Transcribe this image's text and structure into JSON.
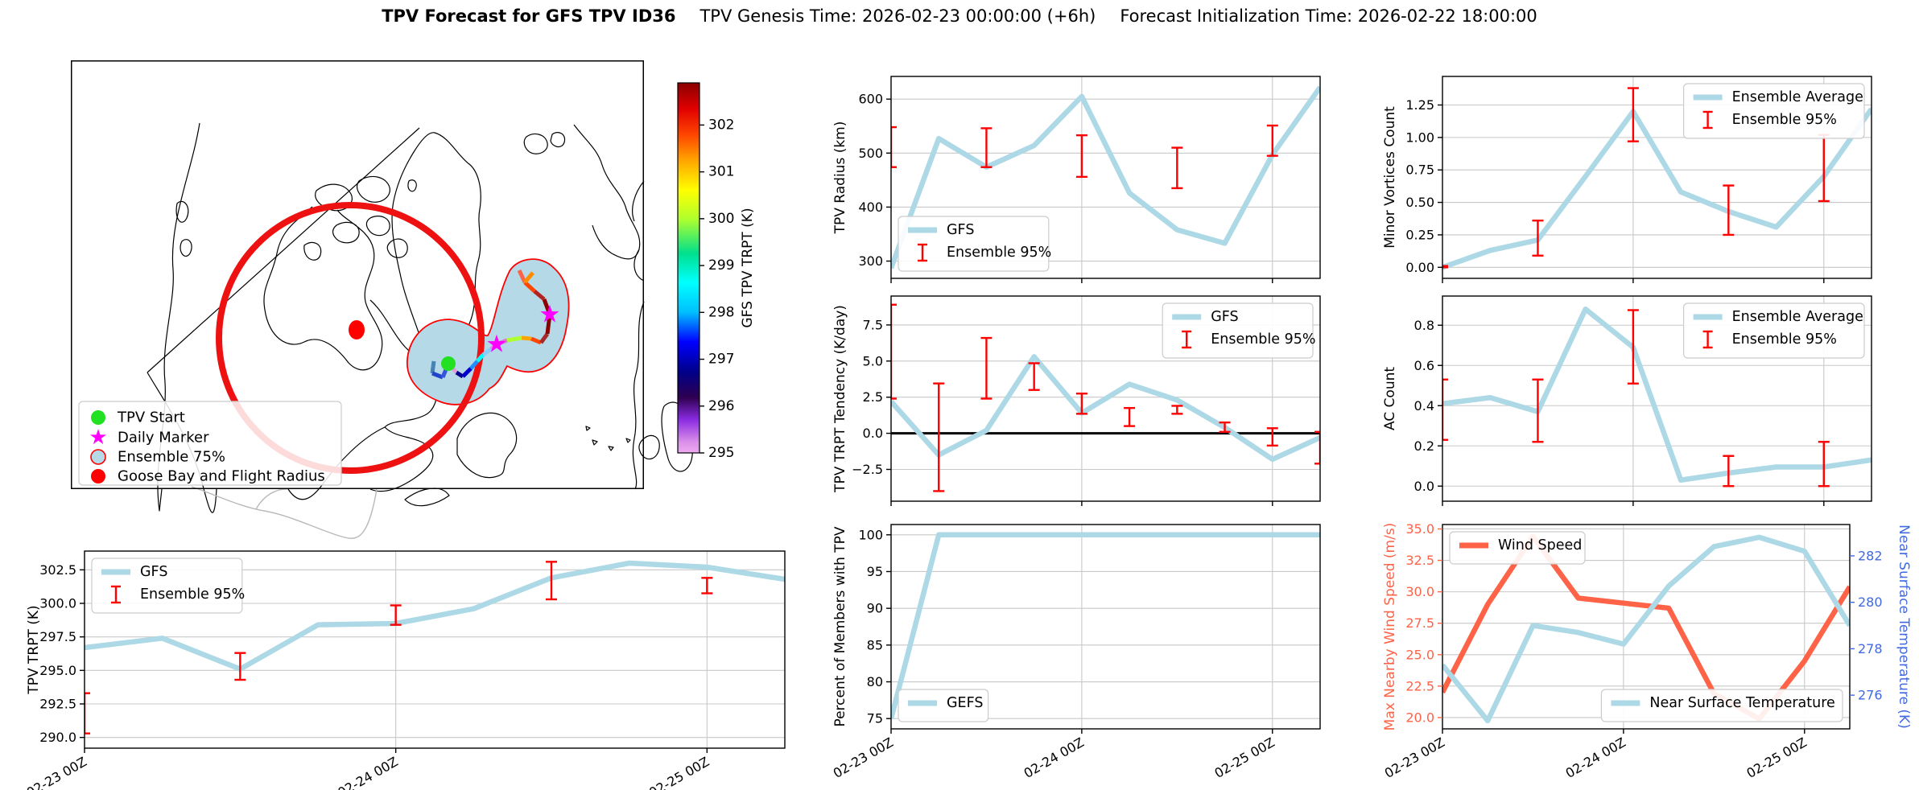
{
  "title": {
    "main": "TPV Forecast for GFS TPV ID36",
    "genesis": "TPV Genesis Time: 2026-02-23 00:00:00 (+6h)",
    "init": "Forecast Initialization Time: 2026-02-22 18:00:00"
  },
  "colors": {
    "series": "#ADD8E6",
    "error": "#FF0000",
    "wind": "#FF6347",
    "temp_axis": "#4169E1",
    "grid": "#C8C8C8",
    "frame": "#000000",
    "flight_circle": "#EE1111",
    "ensemble_fill": "#B5D9E7",
    "tpv_start": "#22E022",
    "daily_marker": "#FF00FF"
  },
  "map": {
    "legend": [
      {
        "label": "TPV Start",
        "marker": "green-dot"
      },
      {
        "label": "Daily Marker",
        "marker": "magenta-star"
      },
      {
        "label": "Ensemble 75%",
        "marker": "ensemble-patch"
      },
      {
        "label": "Goose Bay and Flight Radius",
        "marker": "red-dot"
      }
    ]
  },
  "colorbar": {
    "label": "GFS TPV TRPT (K)",
    "vmin": 295,
    "vmax": 302.9,
    "ticks": [
      302,
      301,
      300,
      299,
      298,
      297,
      296,
      295
    ]
  },
  "time_axis": {
    "n": 10,
    "ticks": [
      {
        "i": 0,
        "label": "02-23 00Z"
      },
      {
        "i": 4,
        "label": "02-24 00Z"
      },
      {
        "i": 8,
        "label": "02-25 00Z"
      }
    ]
  },
  "chart_data": [
    {
      "id": "trpt",
      "type": "line",
      "ylabel": "TPV TRPT (K)",
      "ylabel_color": "#000000",
      "ylim": [
        289.2,
        303.9
      ],
      "yticks": [
        [
          290.0,
          "290.0"
        ],
        [
          292.5,
          "292.5"
        ],
        [
          295.0,
          "295.0"
        ],
        [
          297.5,
          "297.5"
        ],
        [
          300.0,
          "300.0"
        ],
        [
          302.5,
          "302.5"
        ]
      ],
      "series": [
        {
          "name": "GFS",
          "color": "series",
          "values": [
            296.7,
            297.4,
            295.1,
            298.4,
            298.5,
            299.6,
            301.9,
            303.0,
            302.7,
            301.8
          ]
        }
      ],
      "errorbars": [
        [
          0,
          290.3,
          293.3
        ],
        [
          2,
          294.3,
          296.3
        ],
        [
          4,
          298.4,
          299.85
        ],
        [
          6,
          300.3,
          303.1
        ],
        [
          8,
          300.75,
          301.9
        ]
      ],
      "legends": [
        {
          "loc": "upper left",
          "entries": [
            {
              "kind": "line",
              "color": "series",
              "label": "GFS"
            },
            {
              "kind": "err",
              "label": "Ensemble 95%"
            }
          ]
        }
      ],
      "show_xlabels": true,
      "zeroline": false
    },
    {
      "id": "radius",
      "type": "line",
      "ylabel": "TPV Radius (km)",
      "ylabel_color": "#000000",
      "ylim": [
        268,
        642
      ],
      "yticks": [
        [
          300,
          "300"
        ],
        [
          400,
          "400"
        ],
        [
          500,
          "500"
        ],
        [
          600,
          "600"
        ]
      ],
      "series": [
        {
          "name": "GFS",
          "color": "series",
          "values": [
            287,
            527,
            474,
            514,
            605,
            426,
            358,
            333,
            497,
            622
          ]
        }
      ],
      "errorbars": [
        [
          0,
          474,
          548
        ],
        [
          2,
          474,
          546
        ],
        [
          4,
          456,
          533
        ],
        [
          6,
          435,
          510
        ],
        [
          8,
          495,
          551
        ]
      ],
      "legends": [
        {
          "loc": "lower left",
          "entries": [
            {
              "kind": "line",
              "color": "series",
              "label": "GFS"
            },
            {
              "kind": "err",
              "label": "Ensemble 95%"
            }
          ]
        }
      ],
      "show_xlabels": false,
      "zeroline": false
    },
    {
      "id": "tendency",
      "type": "line",
      "ylabel": "TPV TRPT Tendency (K/day)",
      "ylabel_color": "#000000",
      "ylim": [
        -4.7,
        9.5
      ],
      "yticks": [
        [
          -2.5,
          "−2.5"
        ],
        [
          0.0,
          "0.0"
        ],
        [
          2.5,
          "2.5"
        ],
        [
          5.0,
          "5.0"
        ],
        [
          7.5,
          "7.5"
        ]
      ],
      "series": [
        {
          "name": "GFS",
          "color": "series",
          "values": [
            2.2,
            -1.5,
            0.2,
            5.3,
            1.4,
            3.4,
            2.3,
            0.4,
            -1.8,
            -0.3
          ]
        }
      ],
      "errorbars": [
        [
          0,
          2.4,
          8.9
        ],
        [
          1,
          -4.0,
          3.45
        ],
        [
          2,
          2.4,
          6.6
        ],
        [
          3,
          3.0,
          4.85
        ],
        [
          4,
          1.35,
          2.75
        ],
        [
          5,
          0.5,
          1.75
        ],
        [
          6,
          1.35,
          1.9
        ],
        [
          7,
          0.1,
          0.75
        ],
        [
          8,
          -0.85,
          0.35
        ],
        [
          9,
          -2.1,
          0.1
        ]
      ],
      "legends": [
        {
          "loc": "upper right",
          "entries": [
            {
              "kind": "line",
              "color": "series",
              "label": "GFS"
            },
            {
              "kind": "err",
              "label": "Ensemble 95%"
            }
          ]
        }
      ],
      "show_xlabels": false,
      "zeroline": true
    },
    {
      "id": "members",
      "type": "line",
      "ylabel": "Percent of Members with TPV",
      "ylabel_color": "#000000",
      "ylim": [
        73.6,
        101.4
      ],
      "yticks": [
        [
          75,
          "75"
        ],
        [
          80,
          "80"
        ],
        [
          85,
          "85"
        ],
        [
          90,
          "90"
        ],
        [
          95,
          "95"
        ],
        [
          100,
          "100"
        ]
      ],
      "series": [
        {
          "name": "GEFS",
          "color": "series",
          "values": [
            75,
            100,
            100,
            100,
            100,
            100,
            100,
            100,
            100,
            100
          ]
        }
      ],
      "errorbars": [],
      "legends": [
        {
          "loc": "lower left",
          "entries": [
            {
              "kind": "line",
              "color": "series",
              "label": "GEFS"
            }
          ]
        }
      ],
      "show_xlabels": true,
      "zeroline": false
    },
    {
      "id": "minor",
      "type": "line",
      "ylabel": "Minor Vortices Count",
      "ylabel_color": "#000000",
      "ylim": [
        -0.085,
        1.47
      ],
      "yticks": [
        [
          0.0,
          "0.00"
        ],
        [
          0.25,
          "0.25"
        ],
        [
          0.5,
          "0.50"
        ],
        [
          0.75,
          "0.75"
        ],
        [
          1.0,
          "1.00"
        ],
        [
          1.25,
          "1.25"
        ]
      ],
      "series": [
        {
          "name": "Ensemble Average",
          "color": "series",
          "values": [
            0.0,
            0.13,
            0.21,
            0.7,
            1.2,
            0.58,
            0.43,
            0.31,
            0.7,
            1.22
          ]
        }
      ],
      "errorbars": [
        [
          0,
          0.0,
          0.01
        ],
        [
          2,
          0.09,
          0.36
        ],
        [
          4,
          0.97,
          1.38
        ],
        [
          6,
          0.25,
          0.63
        ],
        [
          8,
          0.51,
          1.02
        ]
      ],
      "legends": [
        {
          "loc": "upper right",
          "entries": [
            {
              "kind": "line",
              "color": "series",
              "label": "Ensemble Average"
            },
            {
              "kind": "err",
              "label": "Ensemble 95%"
            }
          ]
        }
      ],
      "show_xlabels": false,
      "zeroline": false
    },
    {
      "id": "ac",
      "type": "line",
      "ylabel": "AC Count",
      "ylabel_color": "#000000",
      "ylim": [
        -0.075,
        0.945
      ],
      "yticks": [
        [
          0.0,
          "0.0"
        ],
        [
          0.2,
          "0.2"
        ],
        [
          0.4,
          "0.4"
        ],
        [
          0.6,
          "0.6"
        ],
        [
          0.8,
          "0.8"
        ]
      ],
      "series": [
        {
          "name": "Ensemble Average",
          "color": "series",
          "values": [
            0.41,
            0.44,
            0.37,
            0.88,
            0.69,
            0.03,
            0.065,
            0.095,
            0.095,
            0.13
          ]
        }
      ],
      "errorbars": [
        [
          0,
          0.23,
          0.53
        ],
        [
          2,
          0.22,
          0.53
        ],
        [
          4,
          0.51,
          0.875
        ],
        [
          6,
          0.0,
          0.15
        ],
        [
          8,
          0.0,
          0.22
        ]
      ],
      "legends": [
        {
          "loc": "upper right",
          "entries": [
            {
              "kind": "line",
              "color": "series",
              "label": "Ensemble Average"
            },
            {
              "kind": "err",
              "label": "Ensemble 95%"
            }
          ]
        }
      ],
      "show_xlabels": false,
      "zeroline": false
    },
    {
      "id": "wind",
      "type": "line",
      "ylabel": "Max Nearby Wind Speed (m/s)",
      "ylabel_color": "#FF6347",
      "ylim": [
        19.1,
        35.35
      ],
      "yticks": [
        [
          20.0,
          "20.0"
        ],
        [
          22.5,
          "22.5"
        ],
        [
          25.0,
          "25.0"
        ],
        [
          27.5,
          "27.5"
        ],
        [
          30.0,
          "30.0"
        ],
        [
          32.5,
          "32.5"
        ],
        [
          35.0,
          "35.0"
        ]
      ],
      "ytick_color": "#FF6347",
      "series": [
        {
          "name": "Wind Speed",
          "color": "wind",
          "values": [
            22.0,
            29.0,
            34.4,
            29.5,
            29.1,
            28.7,
            21.9,
            19.9,
            24.5,
            30.4
          ]
        },
        {
          "name": "Near Surface Temperature",
          "color": "series",
          "axis": "right",
          "values": [
            277.3,
            274.9,
            279.0,
            278.7,
            278.2,
            280.7,
            282.4,
            282.8,
            282.2,
            279.0
          ]
        }
      ],
      "right_axis": {
        "label": "Near Surface Temperature (K)",
        "color": "#4169E1",
        "ylim": [
          274.55,
          283.35
        ],
        "yticks": [
          [
            276,
            "276"
          ],
          [
            278,
            "278"
          ],
          [
            280,
            "280"
          ],
          [
            282,
            "282"
          ]
        ]
      },
      "errorbars": [],
      "legends": [
        {
          "loc": "upper left",
          "entries": [
            {
              "kind": "line",
              "color": "wind",
              "label": "Wind Speed"
            }
          ]
        },
        {
          "loc": "lower right",
          "entries": [
            {
              "kind": "line",
              "color": "series",
              "label": "Near Surface Temperature"
            }
          ]
        }
      ],
      "show_xlabels": true,
      "zeroline": false
    }
  ]
}
